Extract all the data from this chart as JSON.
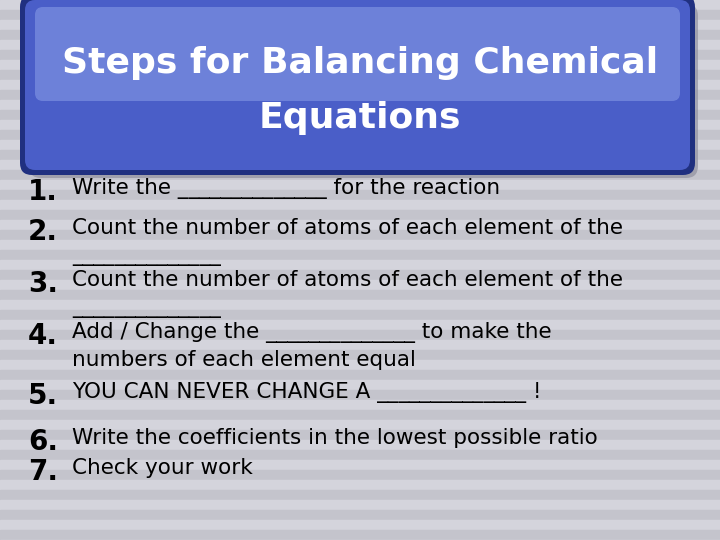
{
  "title_line1": "Steps for Balancing Chemical",
  "title_line2": "Equations",
  "background_color": "#cbcbd4",
  "stripe_light": "#d4d4dc",
  "stripe_dark": "#c4c4cc",
  "title_bg_main": "#4a5ec8",
  "title_bg_highlight": "#7a8ee0",
  "title_bg_dark": "#3040a0",
  "title_border_outer": "#2030808",
  "title_text_color": "#ffffff",
  "body_text_color": "#000000",
  "shadow_color": "#888898",
  "items": [
    {
      "num": "1.",
      "line1": "Write the ______________ for the reaction",
      "line2": null
    },
    {
      "num": "2.",
      "line1": "Count the number of atoms of each element of the",
      "line2": "______________"
    },
    {
      "num": "3.",
      "line1": "Count the number of atoms of each element of the",
      "line2": "______________"
    },
    {
      "num": "4.",
      "line1": "Add / Change the ______________ to make the",
      "line2": "numbers of each element equal"
    },
    {
      "num": "5.",
      "line1": "YOU CAN NEVER CHANGE A ______________ !",
      "line2": null
    },
    {
      "num": "6.",
      "line1": "Write the coefficients in the lowest possible ratio",
      "line2": null
    },
    {
      "num": "7.",
      "line1": "Check your work",
      "line2": null
    }
  ],
  "figsize": [
    7.2,
    5.4
  ],
  "dpi": 100
}
